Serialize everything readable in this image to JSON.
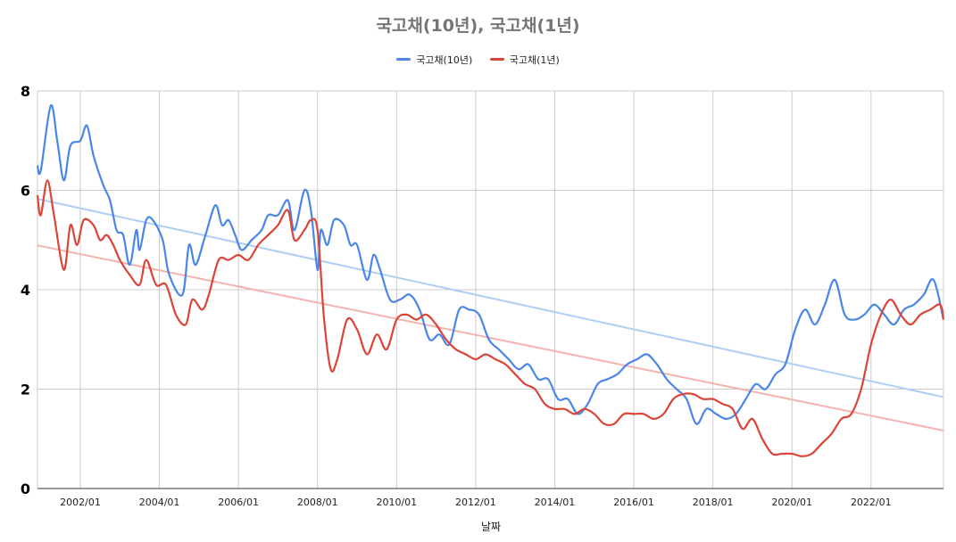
{
  "chart_data": {
    "type": "line",
    "title": "국고채(10년), 국고채(1년)",
    "xlabel": "날짜",
    "ylabel": "",
    "ylim": [
      0,
      8
    ],
    "xlim": [
      "2000-12",
      "2023-11"
    ],
    "y_ticks": [
      "0",
      "2",
      "4",
      "6",
      "8"
    ],
    "x_ticks": [
      "2002/01",
      "2004/01",
      "2006/01",
      "2008/01",
      "2010/01",
      "2012/01",
      "2014/01",
      "2016/01",
      "2018/01",
      "2020/01",
      "2022/01"
    ],
    "grid": true,
    "legend_position": "top",
    "trendlines": true,
    "series": [
      {
        "name": "국고채(10년)",
        "color": "#4a86e8",
        "trend_color": "#b0cdf5",
        "points": [
          [
            "2000-12",
            6.5
          ],
          [
            "2001-01",
            6.4
          ],
          [
            "2001-04",
            7.7
          ],
          [
            "2001-06",
            7.0
          ],
          [
            "2001-08",
            6.2
          ],
          [
            "2001-10",
            6.9
          ],
          [
            "2002-01",
            7.0
          ],
          [
            "2002-03",
            7.3
          ],
          [
            "2002-05",
            6.7
          ],
          [
            "2002-08",
            6.1
          ],
          [
            "2002-10",
            5.8
          ],
          [
            "2002-12",
            5.2
          ],
          [
            "2003-02",
            5.1
          ],
          [
            "2003-04",
            4.5
          ],
          [
            "2003-06",
            5.2
          ],
          [
            "2003-07",
            4.8
          ],
          [
            "2003-09",
            5.4
          ],
          [
            "2003-11",
            5.4
          ],
          [
            "2004-02",
            5.0
          ],
          [
            "2004-04",
            4.3
          ],
          [
            "2004-08",
            3.9
          ],
          [
            "2004-10",
            4.9
          ],
          [
            "2004-12",
            4.5
          ],
          [
            "2005-03",
            5.1
          ],
          [
            "2005-06",
            5.7
          ],
          [
            "2005-08",
            5.3
          ],
          [
            "2005-10",
            5.4
          ],
          [
            "2005-12",
            5.1
          ],
          [
            "2006-02",
            4.8
          ],
          [
            "2006-05",
            5.0
          ],
          [
            "2006-08",
            5.2
          ],
          [
            "2006-10",
            5.5
          ],
          [
            "2007-01",
            5.5
          ],
          [
            "2007-04",
            5.8
          ],
          [
            "2007-06",
            5.2
          ],
          [
            "2007-09",
            6.0
          ],
          [
            "2007-11",
            5.6
          ],
          [
            "2008-01",
            4.4
          ],
          [
            "2008-02",
            5.2
          ],
          [
            "2008-04",
            4.9
          ],
          [
            "2008-06",
            5.4
          ],
          [
            "2008-09",
            5.3
          ],
          [
            "2008-11",
            4.9
          ],
          [
            "2009-01",
            4.9
          ],
          [
            "2009-04",
            4.2
          ],
          [
            "2009-06",
            4.7
          ],
          [
            "2009-08",
            4.4
          ],
          [
            "2009-11",
            3.8
          ],
          [
            "2010-02",
            3.8
          ],
          [
            "2010-05",
            3.9
          ],
          [
            "2010-08",
            3.6
          ],
          [
            "2010-11",
            3.0
          ],
          [
            "2011-02",
            3.1
          ],
          [
            "2011-05",
            2.9
          ],
          [
            "2011-08",
            3.6
          ],
          [
            "2011-11",
            3.6
          ],
          [
            "2012-02",
            3.5
          ],
          [
            "2012-05",
            3.0
          ],
          [
            "2012-08",
            2.8
          ],
          [
            "2012-11",
            2.6
          ],
          [
            "2013-02",
            2.4
          ],
          [
            "2013-05",
            2.5
          ],
          [
            "2013-08",
            2.2
          ],
          [
            "2013-11",
            2.2
          ],
          [
            "2014-02",
            1.8
          ],
          [
            "2014-05",
            1.8
          ],
          [
            "2014-08",
            1.5
          ],
          [
            "2014-11",
            1.7
          ],
          [
            "2015-02",
            2.1
          ],
          [
            "2015-05",
            2.2
          ],
          [
            "2015-08",
            2.3
          ],
          [
            "2015-11",
            2.5
          ],
          [
            "2016-02",
            2.6
          ],
          [
            "2016-05",
            2.7
          ],
          [
            "2016-08",
            2.5
          ],
          [
            "2016-11",
            2.2
          ],
          [
            "2017-02",
            2.0
          ],
          [
            "2017-05",
            1.8
          ],
          [
            "2017-08",
            1.3
          ],
          [
            "2017-11",
            1.6
          ],
          [
            "2018-02",
            1.5
          ],
          [
            "2018-05",
            1.4
          ],
          [
            "2018-08",
            1.5
          ],
          [
            "2018-11",
            1.8
          ],
          [
            "2019-02",
            2.1
          ],
          [
            "2019-05",
            2.0
          ],
          [
            "2019-08",
            2.3
          ],
          [
            "2019-11",
            2.5
          ],
          [
            "2020-02",
            3.2
          ],
          [
            "2020-05",
            3.6
          ],
          [
            "2020-08",
            3.3
          ],
          [
            "2020-11",
            3.7
          ],
          [
            "2021-02",
            4.2
          ],
          [
            "2021-05",
            3.5
          ],
          [
            "2021-08",
            3.4
          ],
          [
            "2021-11",
            3.5
          ],
          [
            "2022-02",
            3.7
          ],
          [
            "2022-05",
            3.5
          ],
          [
            "2022-08",
            3.3
          ],
          [
            "2022-11",
            3.6
          ],
          [
            "2023-02",
            3.7
          ],
          [
            "2023-05",
            3.9
          ],
          [
            "2023-08",
            4.2
          ],
          [
            "2023-11",
            3.4
          ]
        ]
      },
      {
        "name": "국고채(1년)",
        "color": "#db4437",
        "trend_color": "#f4b3ae",
        "points": [
          [
            "2000-12",
            5.9
          ],
          [
            "2001-01",
            5.5
          ],
          [
            "2001-03",
            6.2
          ],
          [
            "2001-05",
            5.5
          ],
          [
            "2001-08",
            4.4
          ],
          [
            "2001-10",
            5.3
          ],
          [
            "2001-12",
            4.9
          ],
          [
            "2002-02",
            5.4
          ],
          [
            "2002-05",
            5.3
          ],
          [
            "2002-07",
            5.0
          ],
          [
            "2002-09",
            5.1
          ],
          [
            "2002-11",
            4.9
          ],
          [
            "2003-01",
            4.6
          ],
          [
            "2003-04",
            4.3
          ],
          [
            "2003-07",
            4.1
          ],
          [
            "2003-09",
            4.6
          ],
          [
            "2003-12",
            4.1
          ],
          [
            "2004-03",
            4.1
          ],
          [
            "2004-06",
            3.5
          ],
          [
            "2004-09",
            3.3
          ],
          [
            "2004-11",
            3.8
          ],
          [
            "2005-02",
            3.6
          ],
          [
            "2005-04",
            3.9
          ],
          [
            "2005-07",
            4.6
          ],
          [
            "2005-10",
            4.6
          ],
          [
            "2006-01",
            4.7
          ],
          [
            "2006-04",
            4.6
          ],
          [
            "2006-07",
            4.9
          ],
          [
            "2006-10",
            5.1
          ],
          [
            "2007-01",
            5.3
          ],
          [
            "2007-04",
            5.6
          ],
          [
            "2007-06",
            5.0
          ],
          [
            "2007-09",
            5.2
          ],
          [
            "2007-11",
            5.4
          ],
          [
            "2008-01",
            5.2
          ],
          [
            "2008-03",
            3.4
          ],
          [
            "2008-05",
            2.4
          ],
          [
            "2008-07",
            2.6
          ],
          [
            "2008-10",
            3.4
          ],
          [
            "2009-01",
            3.2
          ],
          [
            "2009-04",
            2.7
          ],
          [
            "2009-07",
            3.1
          ],
          [
            "2009-10",
            2.8
          ],
          [
            "2010-01",
            3.4
          ],
          [
            "2010-04",
            3.5
          ],
          [
            "2010-07",
            3.4
          ],
          [
            "2010-10",
            3.5
          ],
          [
            "2011-01",
            3.3
          ],
          [
            "2011-04",
            3.0
          ],
          [
            "2011-07",
            2.8
          ],
          [
            "2011-10",
            2.7
          ],
          [
            "2012-01",
            2.6
          ],
          [
            "2012-04",
            2.7
          ],
          [
            "2012-07",
            2.6
          ],
          [
            "2012-10",
            2.5
          ],
          [
            "2013-01",
            2.3
          ],
          [
            "2013-04",
            2.1
          ],
          [
            "2013-07",
            2.0
          ],
          [
            "2013-10",
            1.7
          ],
          [
            "2014-01",
            1.6
          ],
          [
            "2014-04",
            1.6
          ],
          [
            "2014-07",
            1.5
          ],
          [
            "2014-10",
            1.6
          ],
          [
            "2015-01",
            1.5
          ],
          [
            "2015-04",
            1.3
          ],
          [
            "2015-07",
            1.3
          ],
          [
            "2015-10",
            1.5
          ],
          [
            "2016-01",
            1.5
          ],
          [
            "2016-04",
            1.5
          ],
          [
            "2016-07",
            1.4
          ],
          [
            "2016-10",
            1.5
          ],
          [
            "2017-01",
            1.8
          ],
          [
            "2017-04",
            1.9
          ],
          [
            "2017-07",
            1.9
          ],
          [
            "2017-10",
            1.8
          ],
          [
            "2018-01",
            1.8
          ],
          [
            "2018-04",
            1.7
          ],
          [
            "2018-07",
            1.6
          ],
          [
            "2018-10",
            1.2
          ],
          [
            "2019-01",
            1.4
          ],
          [
            "2019-04",
            1.0
          ],
          [
            "2019-07",
            0.7
          ],
          [
            "2019-10",
            0.7
          ],
          [
            "2020-01",
            0.7
          ],
          [
            "2020-04",
            0.65
          ],
          [
            "2020-07",
            0.7
          ],
          [
            "2020-10",
            0.9
          ],
          [
            "2021-01",
            1.1
          ],
          [
            "2021-04",
            1.4
          ],
          [
            "2021-07",
            1.5
          ],
          [
            "2021-10",
            2.0
          ],
          [
            "2022-01",
            2.9
          ],
          [
            "2022-04",
            3.5
          ],
          [
            "2022-07",
            3.8
          ],
          [
            "2022-10",
            3.5
          ],
          [
            "2023-01",
            3.3
          ],
          [
            "2023-04",
            3.5
          ],
          [
            "2023-07",
            3.6
          ],
          [
            "2023-10",
            3.7
          ],
          [
            "2023-11",
            3.4
          ]
        ]
      }
    ]
  }
}
